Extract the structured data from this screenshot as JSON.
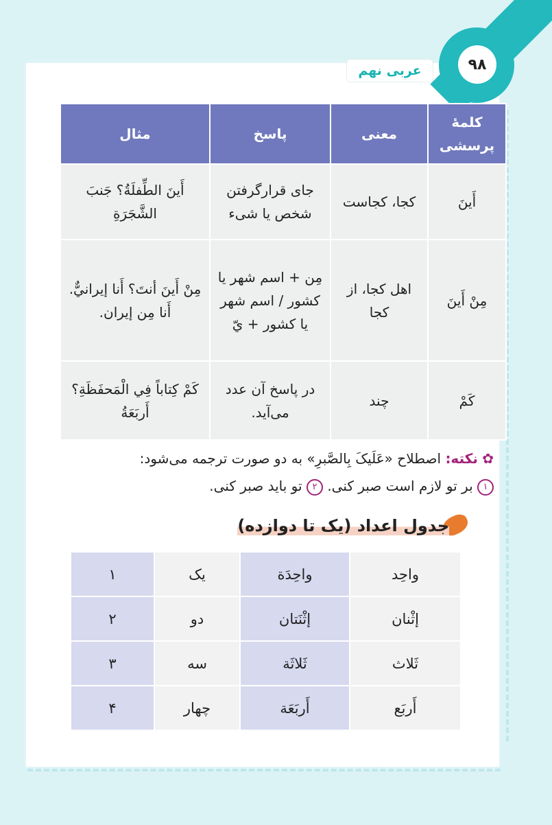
{
  "header": {
    "page_number": "۹۸",
    "book_title": "عربی نهم"
  },
  "table1": {
    "headers": [
      "کلمهٔ پرسشی",
      "معنی",
      "پاسخ",
      "مثال"
    ],
    "rows": [
      [
        "أَینَ",
        "کجا، کجاست",
        "جای قرارگرفتن شخص یا شیء",
        "أَینَ الطِّفلَةُ؟ جَنبَ الشَّجَرَةِ"
      ],
      [
        "مِنْ أَینَ",
        "اهل کجا، از کجا",
        "مِن + اسم شهر یا کشور / اسم شهر یا کشور + يّ",
        "مِنْ أَینَ أنتَ؟ أَنا إیرانيٌّ. أَنا مِن إیران."
      ],
      [
        "کَمْ",
        "چند",
        "در پاسخ آن عدد می‌آید.",
        "کَمْ کِتاباً فِي الْمَحفَظَةِ؟ أَربَعَةُ"
      ]
    ]
  },
  "note": {
    "label": "نکته:",
    "line1": "اصطلاح «عَلَیکَ بِالصَّبرِ» به دو صورت ترجمه می‌شود:",
    "n1": "۱",
    "item1": "بر تو لازم است صبر کنی.",
    "n2": "۲",
    "item2": "تو باید صبر کنی."
  },
  "section_title": "جدول اعداد (یک تا دوازده)",
  "table2": {
    "rows": [
      [
        "واحِد",
        "واحِدَة",
        "یک",
        "۱"
      ],
      [
        "إثْنان",
        "إثْنَتان",
        "دو",
        "۲"
      ],
      [
        "ثَلاث",
        "ثَلاثَة",
        "سه",
        "۳"
      ],
      [
        "أَربَع",
        "أَربَعَة",
        "چهار",
        "۴"
      ]
    ]
  }
}
